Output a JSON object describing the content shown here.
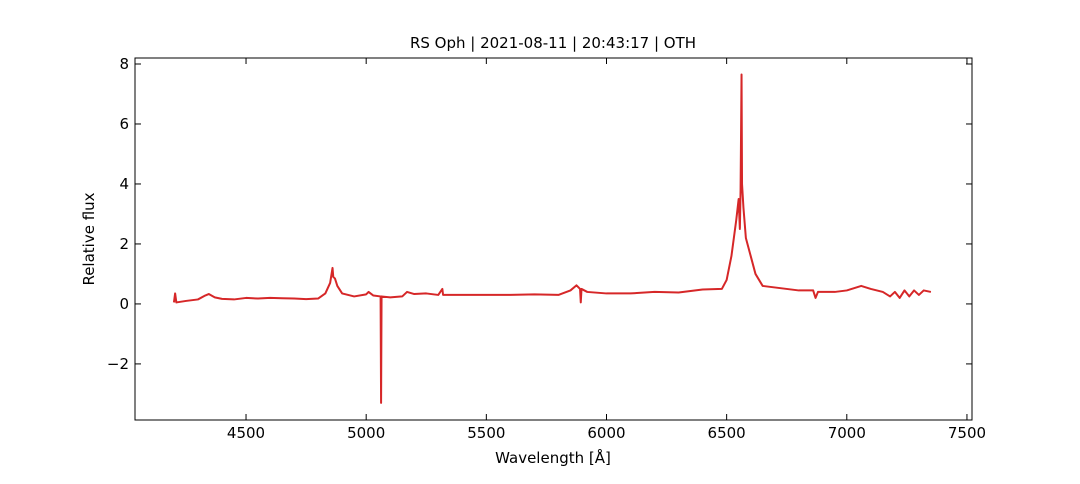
{
  "chart_data": {
    "type": "line",
    "title": "RS Oph | 2021-08-11 | 20:43:17 | OTH",
    "xlabel": "Wavelength [Å]",
    "ylabel": "Relative flux",
    "x": [
      4200,
      4205,
      4210,
      4250,
      4300,
      4330,
      4345,
      4370,
      4400,
      4450,
      4500,
      4550,
      4600,
      4650,
      4700,
      4750,
      4800,
      4830,
      4850,
      4860,
      4863,
      4870,
      4880,
      4900,
      4950,
      5000,
      5010,
      5030,
      5060,
      5062,
      5064,
      5100,
      5150,
      5170,
      5200,
      5250,
      5300,
      5317,
      5320,
      5400,
      5500,
      5600,
      5700,
      5800,
      5850,
      5875,
      5890,
      5893,
      5896,
      5920,
      6000,
      6100,
      6200,
      6300,
      6400,
      6480,
      6500,
      6520,
      6540,
      6550,
      6555,
      6558,
      6562,
      6564,
      6570,
      6580,
      6600,
      6620,
      6650,
      6700,
      6800,
      6860,
      6870,
      6880,
      6950,
      7000,
      7060,
      7100,
      7150,
      7180,
      7200,
      7220,
      7240,
      7260,
      7280,
      7300,
      7320,
      7350
    ],
    "series": [
      {
        "color": "#d62728",
        "values": [
          0.05,
          0.35,
          0.05,
          0.1,
          0.15,
          0.28,
          0.33,
          0.22,
          0.17,
          0.15,
          0.2,
          0.18,
          0.2,
          0.19,
          0.18,
          0.16,
          0.18,
          0.35,
          0.7,
          1.2,
          0.9,
          0.85,
          0.6,
          0.35,
          0.25,
          0.32,
          0.4,
          0.28,
          0.25,
          -3.3,
          0.25,
          0.22,
          0.25,
          0.4,
          0.33,
          0.35,
          0.3,
          0.5,
          0.3,
          0.3,
          0.3,
          0.3,
          0.32,
          0.3,
          0.45,
          0.62,
          0.5,
          0.05,
          0.5,
          0.4,
          0.35,
          0.35,
          0.4,
          0.38,
          0.48,
          0.5,
          0.8,
          1.6,
          2.8,
          3.5,
          2.5,
          3.8,
          7.65,
          4.0,
          3.2,
          2.2,
          1.6,
          1.0,
          0.6,
          0.55,
          0.45,
          0.45,
          0.2,
          0.4,
          0.4,
          0.45,
          0.6,
          0.5,
          0.4,
          0.25,
          0.4,
          0.2,
          0.45,
          0.25,
          0.45,
          0.3,
          0.45,
          0.4
        ]
      }
    ],
    "xlim": [
      4038,
      7521
    ],
    "ylim": [
      -3.87,
      8.2
    ],
    "xticks": [
      4500,
      5000,
      5500,
      6000,
      6500,
      7000,
      7500
    ],
    "yticks": [
      {
        "value": -2,
        "label": "−2"
      },
      0,
      2,
      4,
      6,
      8
    ]
  }
}
